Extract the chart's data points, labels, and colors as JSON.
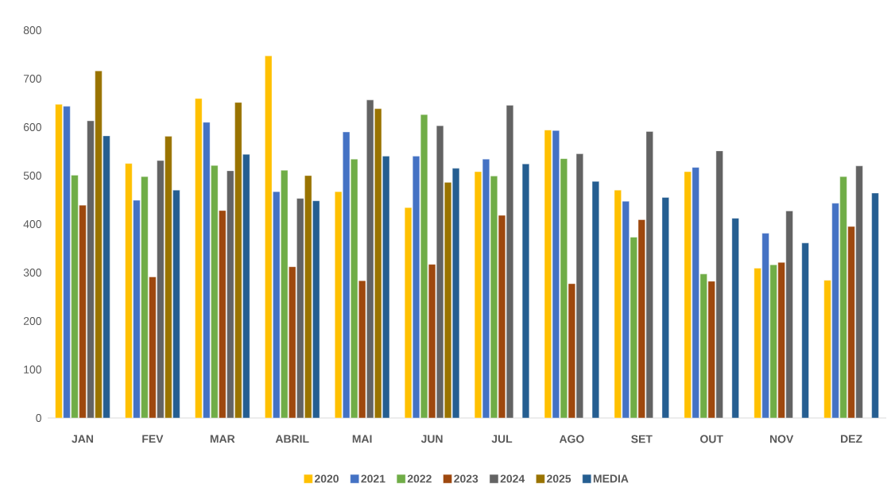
{
  "chart_data": {
    "type": "bar",
    "categories": [
      "JAN",
      "FEV",
      "MAR",
      "ABRIL",
      "MAI",
      "JUN",
      "JUL",
      "AGO",
      "SET",
      "OUT",
      "NOV",
      "DEZ"
    ],
    "series": [
      {
        "name": "2020",
        "color": "#ffc000",
        "values": [
          647,
          525,
          659,
          747,
          467,
          434,
          508,
          594,
          470,
          508,
          309,
          284
        ]
      },
      {
        "name": "2021",
        "color": "#4472c4",
        "values": [
          643,
          449,
          610,
          467,
          590,
          540,
          534,
          593,
          447,
          517,
          381,
          443
        ]
      },
      {
        "name": "2022",
        "color": "#70ad47",
        "values": [
          501,
          498,
          521,
          511,
          534,
          626,
          499,
          535,
          373,
          297,
          316,
          498
        ]
      },
      {
        "name": "2023",
        "color": "#9e480e",
        "values": [
          439,
          291,
          428,
          312,
          283,
          317,
          418,
          277,
          409,
          282,
          321,
          395
        ]
      },
      {
        "name": "2024",
        "color": "#636363",
        "values": [
          613,
          531,
          510,
          453,
          656,
          603,
          645,
          545,
          591,
          551,
          427,
          520
        ]
      },
      {
        "name": "2025",
        "color": "#997300",
        "values": [
          716,
          581,
          651,
          500,
          638,
          486,
          null,
          null,
          null,
          null,
          null,
          null
        ]
      },
      {
        "name": "MEDIA",
        "color": "#255e91",
        "values": [
          582,
          470,
          544,
          448,
          540,
          515,
          524,
          488,
          455,
          412,
          361,
          464
        ]
      }
    ],
    "ylim": [
      0,
      800
    ],
    "yticks": [
      0,
      100,
      200,
      300,
      400,
      500,
      600,
      700,
      800
    ],
    "legend": "bottom"
  }
}
